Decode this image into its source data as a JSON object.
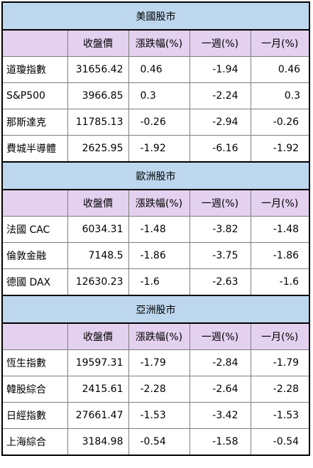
{
  "headers": [
    "",
    "收盤價",
    "漲跌幅(%)",
    "一週(%)",
    "一月(%)"
  ],
  "sections": [
    {
      "title": "美國股市",
      "rows": [
        {
          "name": "道瓊指數",
          "close": "31656.42",
          "change": "0.46",
          "week": "-1.94",
          "month": "0.46"
        },
        {
          "name": "S&P500",
          "close": "3966.85",
          "change": "0.3",
          "week": "-2.24",
          "month": "0.3"
        },
        {
          "name": "那斯達克",
          "close": "11785.13",
          "change": "-0.26",
          "week": "-2.94",
          "month": "-0.26"
        },
        {
          "name": "費城半導體",
          "close": "2625.95",
          "change": "-1.92",
          "week": "-6.16",
          "month": "-1.92"
        }
      ]
    },
    {
      "title": "歐洲股市",
      "rows": [
        {
          "name": "法國 CAC",
          "close": "6034.31",
          "change": "-1.48",
          "week": "-3.82",
          "month": "-1.48"
        },
        {
          "name": "倫敦金融",
          "close": "7148.5",
          "change": "-1.86",
          "week": "-3.75",
          "month": "-1.86"
        },
        {
          "name": "德國 DAX",
          "close": "12630.23",
          "change": "-1.6",
          "week": "-2.63",
          "month": "-1.6"
        }
      ]
    },
    {
      "title": "亞洲股市",
      "rows": [
        {
          "name": "恆生指數",
          "close": "19597.31",
          "change": "-1.79",
          "week": "-2.84",
          "month": "-1.79"
        },
        {
          "name": "韓股綜合",
          "close": "2415.61",
          "change": "-2.28",
          "week": "-2.64",
          "month": "-2.28"
        },
        {
          "name": "日經指數",
          "close": "27661.47",
          "change": "-1.53",
          "week": "-3.42",
          "month": "-1.53"
        },
        {
          "name": "上海綜合",
          "close": "3184.98",
          "change": "-0.54",
          "week": "-1.58",
          "month": "-0.54"
        }
      ]
    }
  ]
}
